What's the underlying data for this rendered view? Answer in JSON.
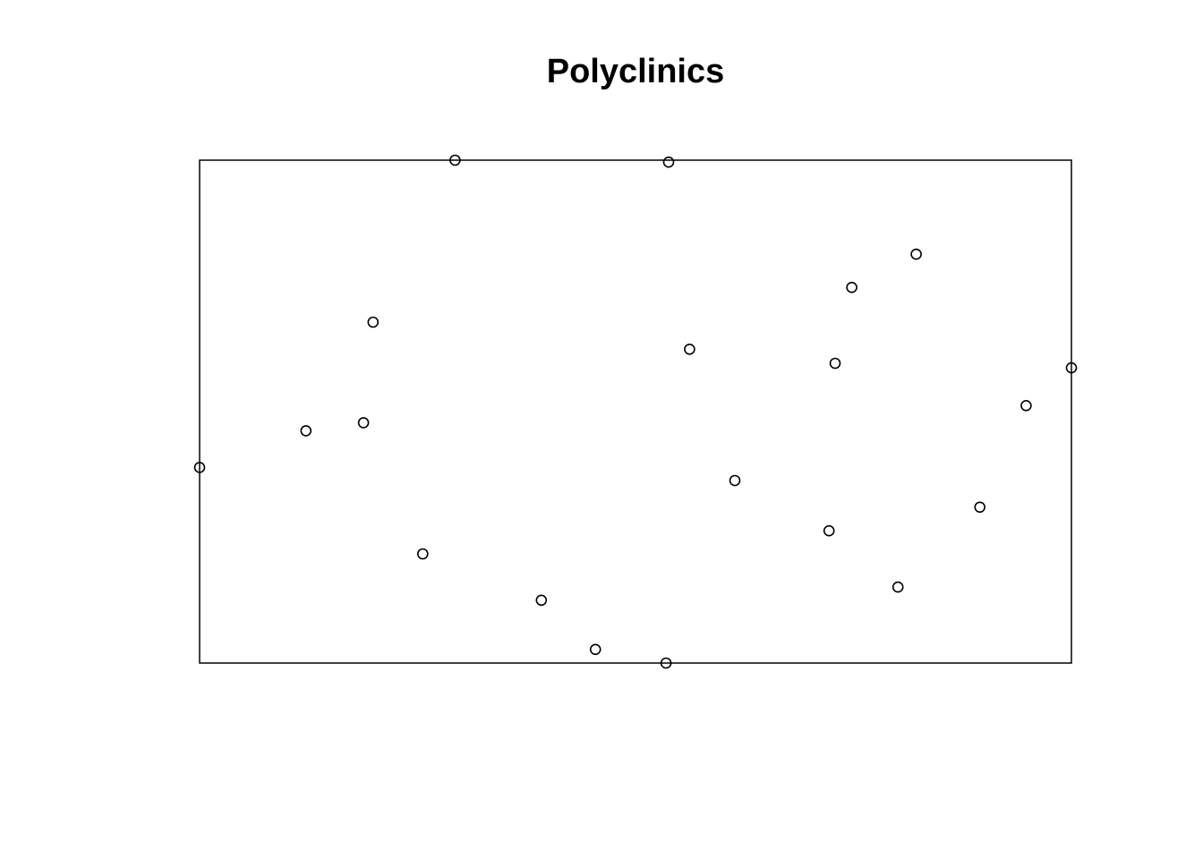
{
  "chart_data": {
    "type": "scatter",
    "title": "Polyclinics",
    "xlabel": "",
    "ylabel": "",
    "axes_visible": false,
    "grid": false,
    "xlim": [
      0,
      100
    ],
    "ylim": [
      0,
      100
    ],
    "marker": "open-circle",
    "marker_color": "#000000",
    "frame_color": "#000000",
    "points": [
      {
        "x": 29.3,
        "y": 100.0
      },
      {
        "x": 53.8,
        "y": 99.6
      },
      {
        "x": 82.2,
        "y": 81.3
      },
      {
        "x": 74.8,
        "y": 74.7
      },
      {
        "x": 19.9,
        "y": 67.8
      },
      {
        "x": 56.2,
        "y": 62.4
      },
      {
        "x": 72.9,
        "y": 59.6
      },
      {
        "x": 100.0,
        "y": 58.7
      },
      {
        "x": 94.8,
        "y": 51.2
      },
      {
        "x": 18.8,
        "y": 47.8
      },
      {
        "x": 12.2,
        "y": 46.2
      },
      {
        "x": 0.0,
        "y": 38.9
      },
      {
        "x": 61.4,
        "y": 36.3
      },
      {
        "x": 89.5,
        "y": 31.0
      },
      {
        "x": 72.2,
        "y": 26.3
      },
      {
        "x": 25.6,
        "y": 21.7
      },
      {
        "x": 80.1,
        "y": 15.1
      },
      {
        "x": 39.2,
        "y": 12.5
      },
      {
        "x": 45.4,
        "y": 2.7
      },
      {
        "x": 53.5,
        "y": 0.0
      }
    ]
  }
}
